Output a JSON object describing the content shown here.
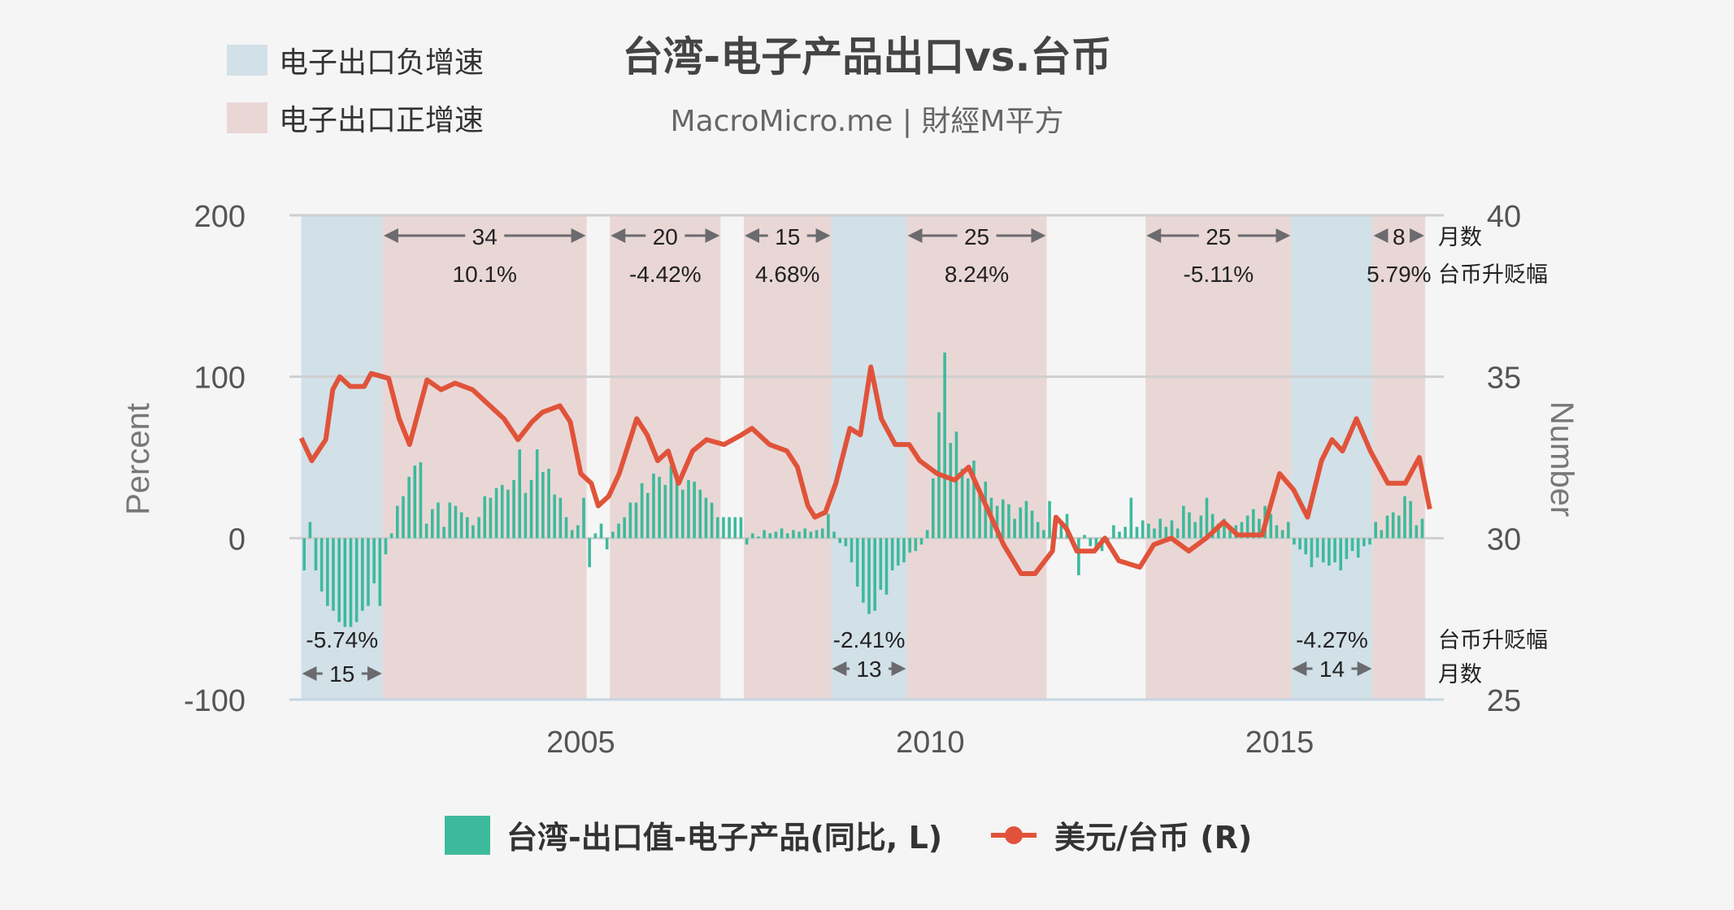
{
  "header": {
    "title": "台湾-电子产品出口vs.台币",
    "subtitle": "MacroMicro.me | 財經M平方"
  },
  "shading_legend": [
    {
      "label": "电子出口负增速",
      "color": "#d2e0e8"
    },
    {
      "label": "电子出口正增速",
      "color": "#e9d7d6"
    }
  ],
  "chart_data": {
    "type": "bar+line",
    "x_ticks": [
      "2005",
      "2010",
      "2015"
    ],
    "xlim": [
      2000.83,
      2017.35
    ],
    "left_axis": {
      "label": "Percent",
      "ylim": [
        -100,
        200
      ],
      "ticks": [
        "200",
        "100",
        "0",
        "-100"
      ]
    },
    "right_axis": {
      "label": "Number",
      "ylim": [
        25,
        40
      ],
      "ticks": [
        "40",
        "35",
        "30",
        "25"
      ]
    },
    "grid": true,
    "legend_position": "bottom",
    "series": [
      {
        "name": "台湾-出口值-电子产品(同比, L)",
        "type": "bar",
        "axis": "left",
        "color": "#3dba9c",
        "frequency": "monthly",
        "start": "2001-01",
        "values": [
          -20,
          10,
          -20,
          -33,
          -42,
          -45,
          -52,
          -55,
          -55,
          -52,
          -45,
          -42,
          -28,
          -42,
          -10,
          3,
          20,
          26,
          38,
          45,
          47,
          9,
          18,
          22,
          7,
          22,
          20,
          16,
          13,
          8,
          13,
          26,
          25,
          31,
          33,
          30,
          36,
          55,
          28,
          36,
          55,
          41,
          43,
          27,
          25,
          13,
          5,
          8,
          25,
          -18,
          3,
          9,
          -7,
          4,
          9,
          13,
          22,
          22,
          34,
          28,
          40,
          38,
          33,
          45,
          38,
          30,
          36,
          35,
          30,
          25,
          22,
          13,
          13,
          13,
          13,
          13,
          -4,
          3,
          1,
          5,
          3,
          4,
          6,
          3,
          5,
          4,
          6,
          4,
          5,
          6,
          15,
          4,
          -3,
          -5,
          -15,
          -30,
          -40,
          -47,
          -45,
          -32,
          -35,
          -20,
          -17,
          -15,
          -9,
          -8,
          -4,
          5,
          37,
          78,
          115,
          59,
          66,
          43,
          37,
          48,
          29,
          35,
          25,
          20,
          24,
          21,
          12,
          19,
          23,
          17,
          10,
          5,
          23,
          14,
          10,
          15,
          0,
          -23,
          2,
          -5,
          -6,
          -8,
          -3,
          8,
          4,
          7,
          25,
          7,
          11,
          9,
          6,
          12,
          7,
          11,
          6,
          20,
          16,
          10,
          14,
          25,
          15,
          9,
          12,
          5,
          8,
          10,
          14,
          18,
          12,
          20,
          15,
          8,
          5,
          10,
          -4,
          -7,
          -10,
          -18,
          -12,
          -15,
          -17,
          -15,
          -20,
          -13,
          -8,
          -12,
          -5,
          -4,
          10,
          5,
          14,
          16,
          14,
          26,
          23,
          8,
          12
        ]
      },
      {
        "name": "美元/台币 (R)",
        "type": "line",
        "axis": "right",
        "color": "#e0533a",
        "points": [
          [
            2001.0,
            33.1
          ],
          [
            2001.15,
            32.4
          ],
          [
            2001.35,
            33.05
          ],
          [
            2001.45,
            34.6
          ],
          [
            2001.55,
            35.0
          ],
          [
            2001.7,
            34.7
          ],
          [
            2001.9,
            34.7
          ],
          [
            2002.0,
            35.1
          ],
          [
            2002.25,
            34.95
          ],
          [
            2002.4,
            33.7
          ],
          [
            2002.55,
            32.9
          ],
          [
            2002.8,
            34.9
          ],
          [
            2003.0,
            34.6
          ],
          [
            2003.2,
            34.8
          ],
          [
            2003.45,
            34.6
          ],
          [
            2003.7,
            34.1
          ],
          [
            2003.9,
            33.7
          ],
          [
            2004.1,
            33.05
          ],
          [
            2004.3,
            33.6
          ],
          [
            2004.45,
            33.9
          ],
          [
            2004.7,
            34.1
          ],
          [
            2004.85,
            33.6
          ],
          [
            2005.0,
            32.0
          ],
          [
            2005.15,
            31.7
          ],
          [
            2005.25,
            31.0
          ],
          [
            2005.4,
            31.3
          ],
          [
            2005.55,
            32.0
          ],
          [
            2005.8,
            33.7
          ],
          [
            2005.95,
            33.2
          ],
          [
            2006.1,
            32.4
          ],
          [
            2006.25,
            32.7
          ],
          [
            2006.4,
            31.7
          ],
          [
            2006.6,
            32.7
          ],
          [
            2006.8,
            33.05
          ],
          [
            2007.05,
            32.9
          ],
          [
            2007.3,
            33.2
          ],
          [
            2007.45,
            33.4
          ],
          [
            2007.7,
            32.9
          ],
          [
            2007.95,
            32.7
          ],
          [
            2008.1,
            32.2
          ],
          [
            2008.25,
            31.0
          ],
          [
            2008.35,
            30.65
          ],
          [
            2008.5,
            30.8
          ],
          [
            2008.65,
            31.7
          ],
          [
            2008.85,
            33.4
          ],
          [
            2009.0,
            33.2
          ],
          [
            2009.15,
            35.3
          ],
          [
            2009.3,
            33.7
          ],
          [
            2009.5,
            32.9
          ],
          [
            2009.7,
            32.9
          ],
          [
            2009.85,
            32.4
          ],
          [
            2010.1,
            32.0
          ],
          [
            2010.35,
            31.8
          ],
          [
            2010.55,
            32.2
          ],
          [
            2010.8,
            31.0
          ],
          [
            2011.05,
            29.8
          ],
          [
            2011.3,
            28.9
          ],
          [
            2011.5,
            28.9
          ],
          [
            2011.75,
            29.6
          ],
          [
            2011.8,
            30.65
          ],
          [
            2011.95,
            30.3
          ],
          [
            2012.1,
            29.6
          ],
          [
            2012.35,
            29.6
          ],
          [
            2012.5,
            30.0
          ],
          [
            2012.7,
            29.3
          ],
          [
            2013.0,
            29.1
          ],
          [
            2013.2,
            29.8
          ],
          [
            2013.45,
            30.0
          ],
          [
            2013.7,
            29.6
          ],
          [
            2013.95,
            30.0
          ],
          [
            2014.2,
            30.5
          ],
          [
            2014.4,
            30.1
          ],
          [
            2014.75,
            30.1
          ],
          [
            2015.0,
            32.0
          ],
          [
            2015.2,
            31.5
          ],
          [
            2015.4,
            30.65
          ],
          [
            2015.6,
            32.4
          ],
          [
            2015.75,
            33.05
          ],
          [
            2015.9,
            32.7
          ],
          [
            2016.1,
            33.7
          ],
          [
            2016.3,
            32.7
          ],
          [
            2016.55,
            31.7
          ],
          [
            2016.8,
            31.7
          ],
          [
            2017.0,
            32.5
          ],
          [
            2017.15,
            30.9
          ]
        ]
      }
    ],
    "periods": [
      {
        "kind": "negative",
        "start": "2001-01",
        "end": "2002-03",
        "months": "15",
        "twd_change": "-5.74%"
      },
      {
        "kind": "positive",
        "start": "2002-03",
        "end": "2005-02",
        "months": "34",
        "twd_change": "10.1%"
      },
      {
        "kind": "positive",
        "start": "2005-06",
        "end": "2007-01",
        "months": "20",
        "twd_change": "-4.42%"
      },
      {
        "kind": "positive",
        "start": "2007-05",
        "end": "2008-08",
        "months": "15",
        "twd_change": "4.68%"
      },
      {
        "kind": "negative",
        "start": "2008-08",
        "end": "2009-09",
        "months": "13",
        "twd_change": "-2.41%"
      },
      {
        "kind": "positive",
        "start": "2009-09",
        "end": "2011-09",
        "months": "25",
        "twd_change": "8.24%"
      },
      {
        "kind": "positive",
        "start": "2013-02",
        "end": "2015-03",
        "months": "25",
        "twd_change": "-5.11%"
      },
      {
        "kind": "negative",
        "start": "2015-03",
        "end": "2016-05",
        "months": "14",
        "twd_change": "-4.27%"
      },
      {
        "kind": "positive",
        "start": "2016-05",
        "end": "2017-02",
        "months": "8",
        "twd_change": "5.79%"
      }
    ],
    "annotation_labels": {
      "months": "月数",
      "twd_change": "台币升贬幅"
    }
  }
}
